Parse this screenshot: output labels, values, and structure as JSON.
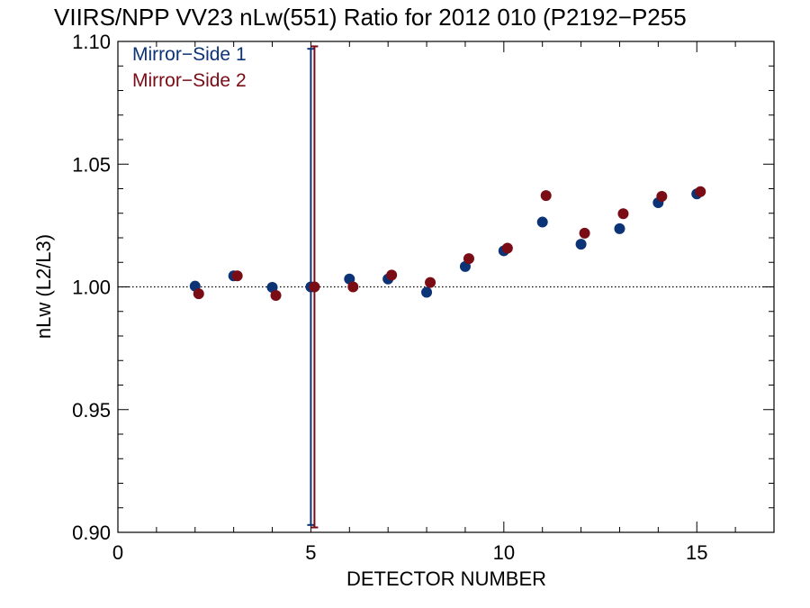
{
  "chart_data": {
    "type": "scatter",
    "title": "VIIRS/NPP VV23 nLw(551) Ratio for 2012 010 (P2192−P255",
    "xlabel": "DETECTOR NUMBER",
    "ylabel": "nLw (L2/L3)",
    "xlim": [
      0,
      17
    ],
    "ylim": [
      0.9,
      1.1
    ],
    "xticks": [
      0,
      5,
      10,
      15
    ],
    "xtick_labels": [
      "0",
      "5",
      "10",
      "15"
    ],
    "yticks": [
      0.9,
      0.95,
      1.0,
      1.05,
      1.1
    ],
    "ytick_labels": [
      "0.90",
      "0.95",
      "1.00",
      "1.05",
      "1.10"
    ],
    "reference_line": 1.0,
    "legend_position": "top-left",
    "series": [
      {
        "name": "Mirror−Side 1",
        "color": "#0c3375",
        "x": [
          2,
          3,
          4,
          5,
          6,
          7,
          8,
          9,
          10,
          11,
          12,
          13,
          14,
          15
        ],
        "y": [
          1.0003,
          1.0045,
          0.9998,
          1.0,
          1.0032,
          1.0032,
          0.9978,
          1.0083,
          1.0147,
          1.0264,
          1.0174,
          1.0237,
          1.0343,
          1.0379
        ],
        "error_bar": {
          "x": 5,
          "low": 0.903,
          "high": 1.097
        }
      },
      {
        "name": "Mirror−Side 2",
        "color": "#7a0c16",
        "x": [
          2,
          3,
          4,
          5,
          6,
          7,
          8,
          9,
          10,
          11,
          12,
          13,
          14,
          15
        ],
        "y": [
          0.9972,
          1.0045,
          0.9965,
          1.0,
          1.0,
          1.0048,
          1.0018,
          1.0115,
          1.0158,
          1.0372,
          1.0219,
          1.0298,
          1.0369,
          1.0388
        ],
        "error_bar": {
          "x": 5,
          "low": 0.902,
          "high": 1.098
        }
      }
    ]
  }
}
